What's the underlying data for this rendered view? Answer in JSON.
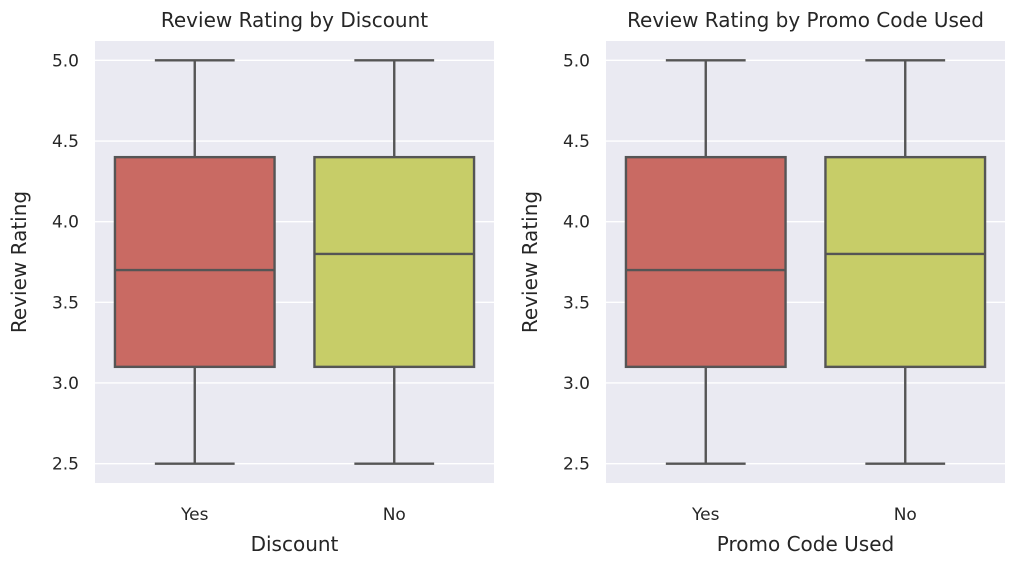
{
  "colors": {
    "background": "#eaeaf2",
    "grid": "#ffffff",
    "line": "#555555",
    "box_palette": [
      "#c96a63",
      "#c7cd68"
    ]
  },
  "chart_data": [
    {
      "type": "box",
      "title": "Review Rating by Discount",
      "xlabel": "Discount",
      "ylabel": "Review Rating",
      "categories": [
        "Yes",
        "No"
      ],
      "ylim": [
        2.38,
        5.12
      ],
      "yticks": [
        "2.5",
        "3.0",
        "3.5",
        "4.0",
        "4.5",
        "5.0"
      ],
      "grid": true,
      "boxes": [
        {
          "category": "Yes",
          "min": 2.5,
          "q1": 3.1,
          "median": 3.7,
          "q3": 4.4,
          "max": 5.0
        },
        {
          "category": "No",
          "min": 2.5,
          "q1": 3.1,
          "median": 3.8,
          "q3": 4.4,
          "max": 5.0
        }
      ]
    },
    {
      "type": "box",
      "title": "Review Rating by Promo Code Used",
      "xlabel": "Promo Code Used",
      "ylabel": "Review Rating",
      "categories": [
        "Yes",
        "No"
      ],
      "ylim": [
        2.38,
        5.12
      ],
      "yticks": [
        "2.5",
        "3.0",
        "3.5",
        "4.0",
        "4.5",
        "5.0"
      ],
      "grid": true,
      "boxes": [
        {
          "category": "Yes",
          "min": 2.5,
          "q1": 3.1,
          "median": 3.7,
          "q3": 4.4,
          "max": 5.0
        },
        {
          "category": "No",
          "min": 2.5,
          "q1": 3.1,
          "median": 3.8,
          "q3": 4.4,
          "max": 5.0
        }
      ]
    }
  ]
}
